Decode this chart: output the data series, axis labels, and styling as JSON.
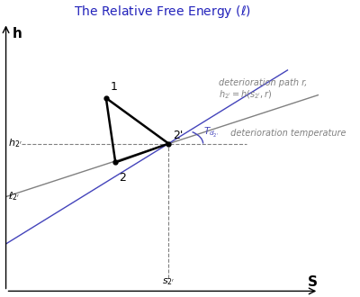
{
  "title": "The Relative Free Energy ($\\ell$)",
  "title_color": "#2222bb",
  "bg_color": "#ffffff",
  "xlim": [
    0,
    10
  ],
  "ylim": [
    0,
    10
  ],
  "point1": [
    3.2,
    7.2
  ],
  "point2": [
    3.5,
    4.8
  ],
  "point2prime": [
    5.2,
    5.5
  ],
  "gray_line_slope": 0.38,
  "gray_line_intercept": 3.52,
  "blue_line_slope": 0.72,
  "blue_line_intercept": 1.76,
  "gray_line_xrange": [
    0.0,
    10.0
  ],
  "blue_line_xrange": [
    0.0,
    9.0
  ],
  "h2prime_y": 5.5,
  "l2prime_x": 0.35,
  "s2prime_x": 5.2,
  "label_h2prime": "$h_{2'}$",
  "label_l2prime": "$\\ell_{2'}$",
  "label_s2prime": "$s_{2'}$",
  "label_1": "1",
  "label_2": "2",
  "label_2prime": "2'",
  "label_h": "h",
  "label_s": "S",
  "annot_det_path1": "deterioration path r,",
  "annot_det_path2": "$h_{2'} = h(s_{2'}, r)$",
  "annot_Td": "$T_{d_{2'}}$",
  "annot_det_temp": " deterioration temperature",
  "arc_radius_x": 2.2,
  "arc_radius_y": 1.2,
  "arc_theta1": 0,
  "arc_theta2": 30,
  "arc_color": "#4444bb"
}
